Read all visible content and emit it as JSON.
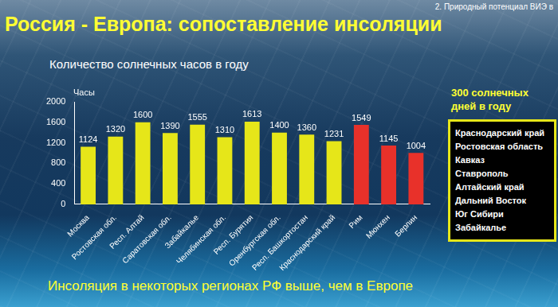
{
  "chart_data": {
    "type": "bar",
    "title": "Россия - Европа: сопоставление инсоляции",
    "subtitle": "Количество солнечных часов в году",
    "y_label": "Часы",
    "categories": [
      "Москва",
      "Ростовская обл.",
      "Респ. Алтай",
      "Саратовская обл.",
      "Забайкалье",
      "Челябинская обл.",
      "Респ. Бурятия",
      "Оренбургская обл.",
      "Респ. Башкортостан",
      "Краснодарский край",
      "Рим",
      "Мюнхен",
      "Берлин"
    ],
    "values": [
      1124,
      1320,
      1600,
      1390,
      1555,
      1310,
      1613,
      1400,
      1360,
      1231,
      1549,
      1145,
      1004
    ],
    "colors": [
      "#e6e619",
      "#e6e619",
      "#e6e619",
      "#e6e619",
      "#e6e619",
      "#e6e619",
      "#e6e619",
      "#e6e619",
      "#e6e619",
      "#e6e619",
      "#e8312a",
      "#e8312a",
      "#e8312a"
    ],
    "ylim": [
      0,
      2000
    ],
    "yticks": [
      0,
      400,
      800,
      1200,
      1600,
      2000
    ],
    "grid": false,
    "data_labels": true
  },
  "header": "2. Природный потенциал ВИЭ в",
  "sidebar": {
    "title": "300 солнечных дней в году",
    "items": [
      "Краснодарский край",
      "Ростовская область",
      "Кавказ",
      "Ставрополь",
      "Алтайский край",
      "Дальний Восток",
      "Юг Сибири",
      "Забайкалье"
    ]
  },
  "footer": "Инсоляция в некоторых регионах РФ выше, чем в Европе"
}
